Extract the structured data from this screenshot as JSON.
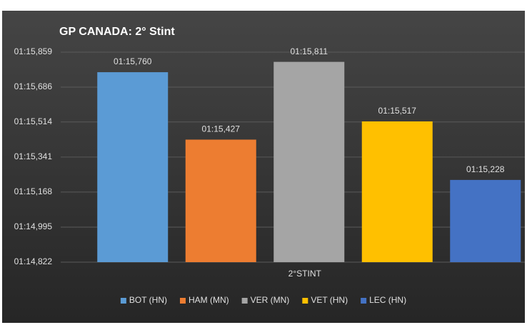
{
  "chart_data": {
    "type": "bar",
    "title": "GP CANADA: 2° Stint",
    "categories": [
      "2°STINT"
    ],
    "series": [
      {
        "name": "BOT (HN)",
        "color": "#5b9bd5",
        "values": [
          75.76
        ],
        "value_labels": [
          "01:15,760"
        ]
      },
      {
        "name": "HAM (MN)",
        "color": "#ed7d31",
        "values": [
          75.427
        ],
        "value_labels": [
          "01:15,427"
        ]
      },
      {
        "name": "VER (MN)",
        "color": "#a5a5a5",
        "values": [
          75.811
        ],
        "value_labels": [
          "01:15,811"
        ]
      },
      {
        "name": "VET (HN)",
        "color": "#ffc000",
        "values": [
          75.517
        ],
        "value_labels": [
          "01:15,517"
        ]
      },
      {
        "name": "LEC (HN)",
        "color": "#4472c4",
        "values": [
          75.228
        ],
        "value_labels": [
          "01:15,228"
        ]
      }
    ],
    "ylim": [
      74.822,
      75.859
    ],
    "yticks": [
      {
        "value": 74.822,
        "label": "01:14,822"
      },
      {
        "value": 74.995,
        "label": "01:14,995"
      },
      {
        "value": 75.168,
        "label": "01:15,168"
      },
      {
        "value": 75.341,
        "label": "01:15,341"
      },
      {
        "value": 75.514,
        "label": "01:15,514"
      },
      {
        "value": 75.686,
        "label": "01:15,686"
      },
      {
        "value": 75.859,
        "label": "01:15,859"
      }
    ],
    "grid": true,
    "legend": "bottom"
  }
}
